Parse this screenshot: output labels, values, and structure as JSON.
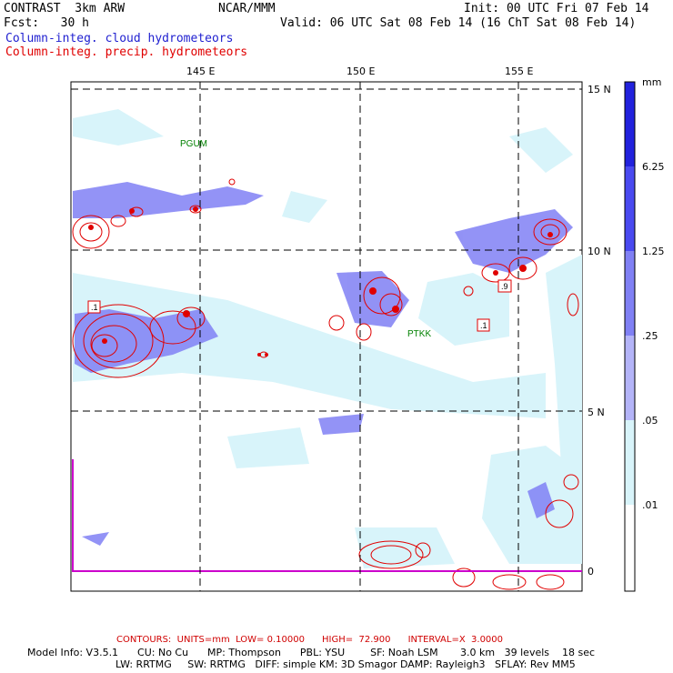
{
  "header": {
    "model": "CONTRAST  3km ARW",
    "org": "NCAR/MMM",
    "init": "Init: 00 UTC Fri 07 Feb 14",
    "fcst": "Fcst:   30 h",
    "valid": "Valid: 06 UTC Sat 08 Feb 14 (16 ChT Sat 08 Feb 14)",
    "field1": "Column-integ. cloud hydrometeors",
    "field2": "Column-integ. precip. hydrometeors"
  },
  "map": {
    "lon_labels": [
      "145 E",
      "150 E",
      "155 E"
    ],
    "lat_labels": [
      "15 N",
      "10 N",
      "5 N",
      "0"
    ],
    "stations": [
      "PGUM",
      "PTKK"
    ],
    "contour_labels": [
      ".1",
      ".9",
      ".1"
    ]
  },
  "colorbar": {
    "unit": "mm",
    "labels": [
      "6.25",
      "1.25",
      ".25",
      ".05",
      ".01"
    ],
    "colors": [
      "#2222dd",
      "#4a4af0",
      "#8080f4",
      "#b4b4f8",
      "#d8f4fa",
      "#ffffff"
    ]
  },
  "footer": {
    "contours": "CONTOURS:  UNITS=mm  LOW= 0.10000      HIGH=  72.900      INTERVAL=X  3.0000",
    "model_info": "Model Info: V3.5.1      CU: No Cu      MP: Thompson      PBL: YSU        SF: Noah LSM       3.0 km   39 levels    18 sec",
    "physics": "LW: RRTMG     SW: RRTMG   DIFF: simple KM: 3D Smagor DAMP: Rayleigh3   SFLAY: Rev MM5"
  },
  "colors": {
    "cloud_light": "#d8f4fa",
    "cloud_mid": "#8080f4",
    "precip": "#e00000",
    "coast": "#cc00cc"
  }
}
